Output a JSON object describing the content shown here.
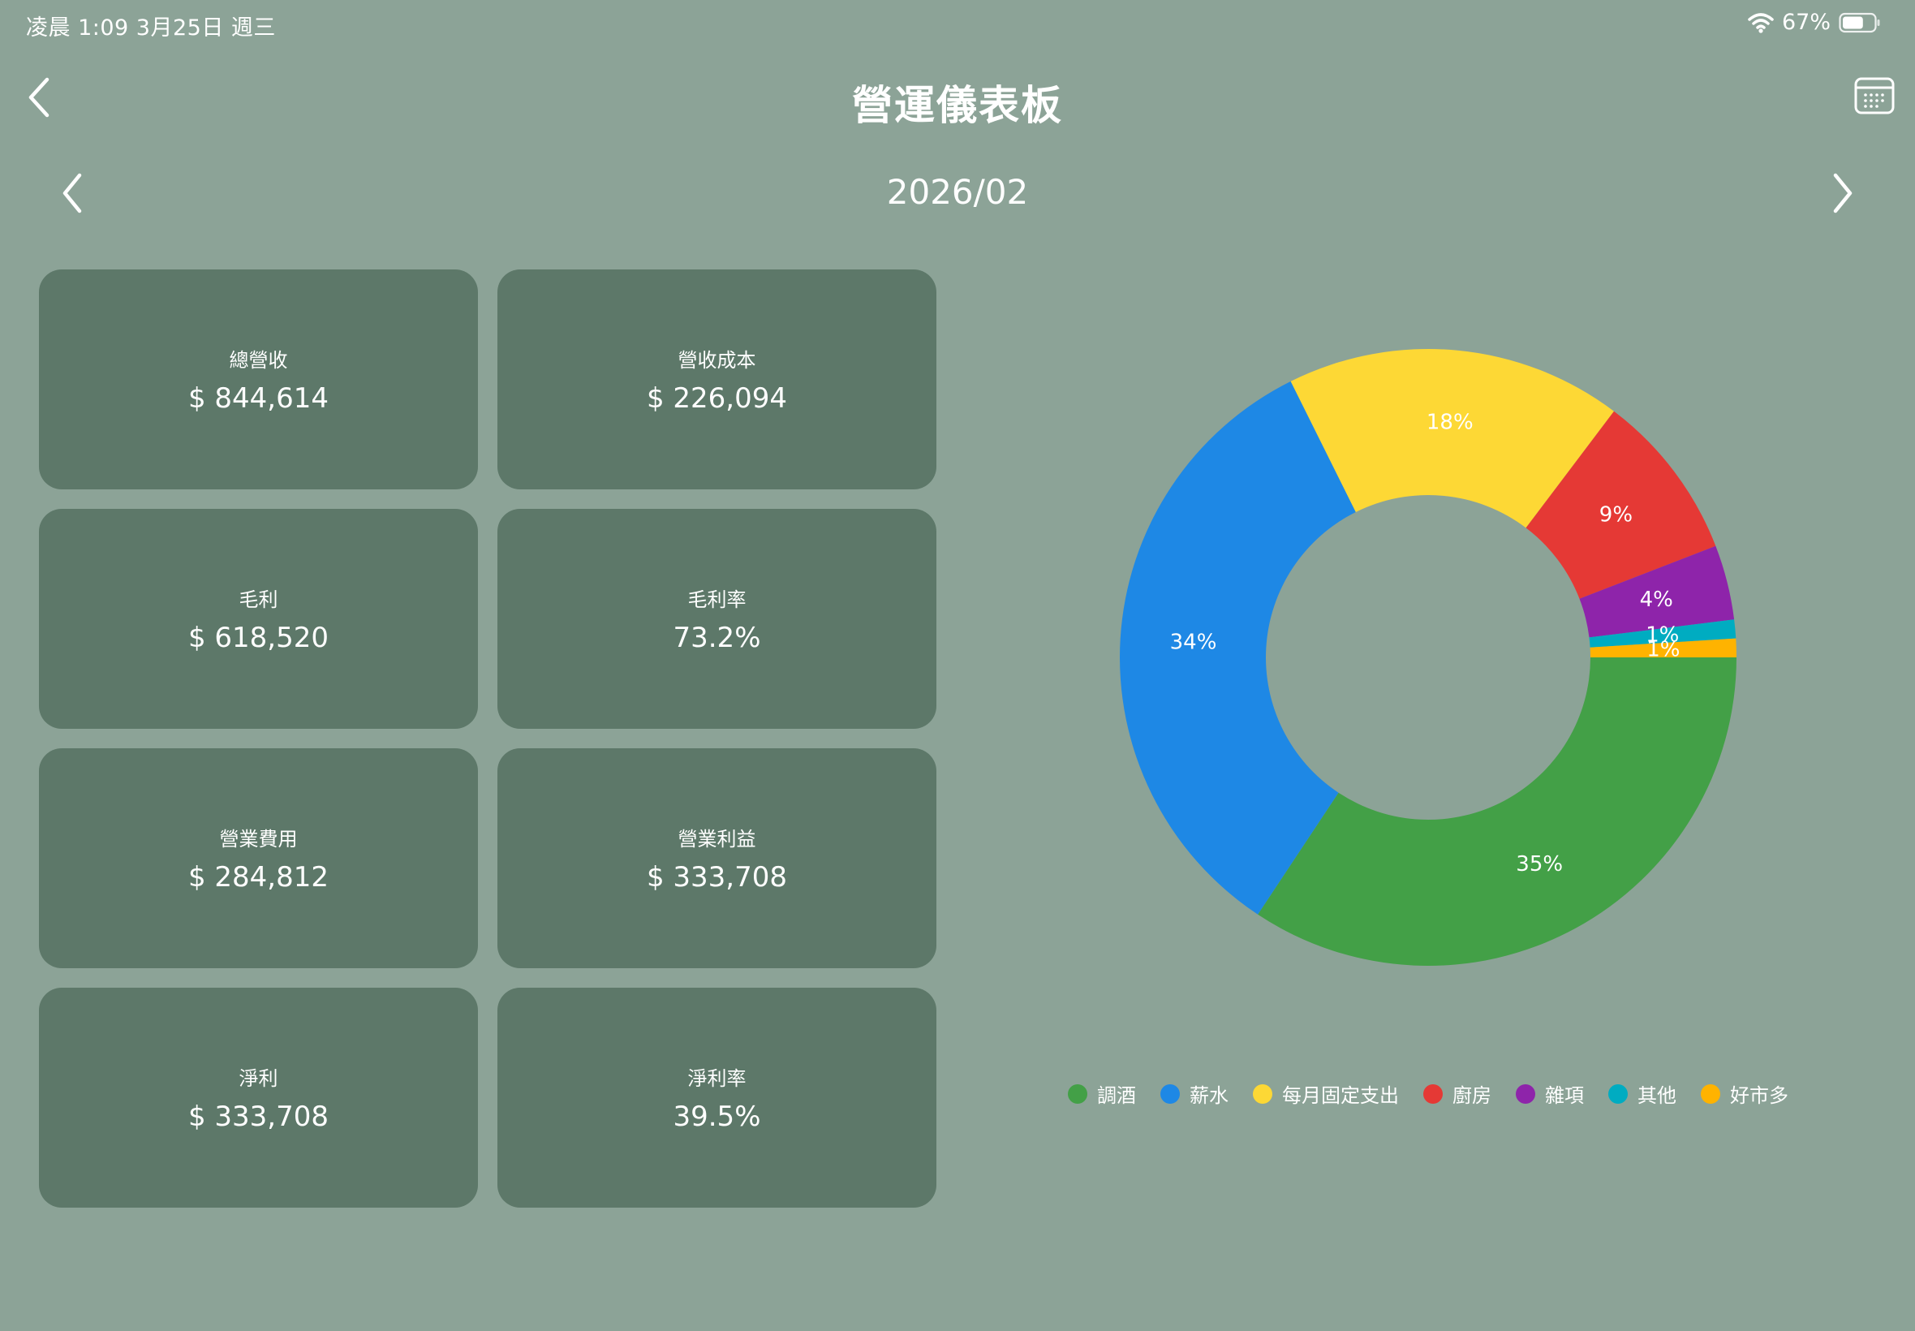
{
  "status_bar": {
    "time": "凌晨 1:09   3月25日 週三",
    "battery": "67%",
    "battery_level": 0.67
  },
  "header": {
    "title": "營運儀表板",
    "back_icon": "chevron-left-icon",
    "calendar_icon": "calendar-icon"
  },
  "month_nav": {
    "month": "2026/02",
    "prev_icon": "chevron-left-icon",
    "next_icon": "chevron-right-icon"
  },
  "cards": [
    {
      "label": "總營收",
      "value": "$ 844,614"
    },
    {
      "label": "營收成本",
      "value": "$ 226,094"
    },
    {
      "label": "毛利",
      "value": "$ 618,520"
    },
    {
      "label": "毛利率",
      "value": "73.2%"
    },
    {
      "label": "營業費用",
      "value": "$ 284,812"
    },
    {
      "label": "營業利益",
      "value": "$ 333,708"
    },
    {
      "label": "淨利",
      "value": "$ 333,708"
    },
    {
      "label": "淨利率",
      "value": "39.5%"
    }
  ],
  "chart_data": {
    "type": "pie",
    "donut": true,
    "legend_position": "bottom",
    "series": [
      {
        "name": "調酒",
        "value": 35,
        "label": "35%",
        "color": "#43a047"
      },
      {
        "name": "薪水",
        "value": 34,
        "label": "34%",
        "color": "#1e88e5"
      },
      {
        "name": "每月固定支出",
        "value": 18,
        "label": "18%",
        "color": "#fdd835"
      },
      {
        "name": "廚房",
        "value": 9,
        "label": "9%",
        "color": "#e53935"
      },
      {
        "name": "雜項",
        "value": 4,
        "label": "4%",
        "color": "#8e24aa"
      },
      {
        "name": "其他",
        "value": 1,
        "label": "1%",
        "color": "#00acc1"
      },
      {
        "name": "好市多",
        "value": 1,
        "label": "1%",
        "color": "#ffb300"
      }
    ]
  }
}
